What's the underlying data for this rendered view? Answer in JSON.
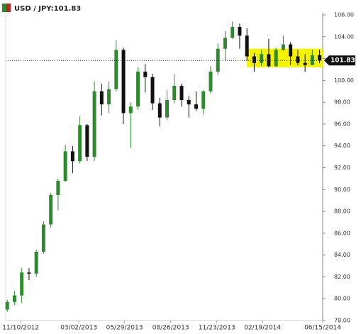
{
  "chart_data": {
    "type": "candlestick",
    "title": "USD / JPY:101.83",
    "x": [
      "2012-10-15",
      "2012-10-29",
      "2012-11-12",
      "2012-11-26",
      "2012-12-10",
      "2012-12-24",
      "2013-01-07",
      "2013-01-21",
      "2013-02-04",
      "2013-02-18",
      "2013-03-04",
      "2013-03-18",
      "2013-04-01",
      "2013-04-15",
      "2013-04-29",
      "2013-05-13",
      "2013-05-27",
      "2013-06-10",
      "2013-06-24",
      "2013-07-08",
      "2013-07-22",
      "2013-08-05",
      "2013-08-19",
      "2013-09-02",
      "2013-09-16",
      "2013-09-30",
      "2013-10-14",
      "2013-10-28",
      "2013-11-11",
      "2013-11-25",
      "2013-12-09",
      "2013-12-23",
      "2014-01-06",
      "2014-01-20",
      "2014-02-03",
      "2014-02-17",
      "2014-03-03",
      "2014-03-17",
      "2014-03-31",
      "2014-04-14",
      "2014-04-28",
      "2014-05-12",
      "2014-05-26",
      "2014-06-09"
    ],
    "open": [
      79.0,
      79.7,
      80.3,
      82.4,
      82.3,
      84.3,
      86.8,
      89.5,
      90.8,
      93.5,
      92.6,
      95.9,
      93.0,
      99.0,
      97.8,
      99.2,
      102.8,
      97.0,
      97.6,
      100.8,
      100.3,
      97.9,
      96.6,
      98.2,
      99.5,
      98.2,
      97.8,
      97.4,
      99.0,
      100.8,
      102.9,
      103.9,
      104.9,
      104.1,
      102.2,
      101.6,
      102.4,
      101.3,
      102.8,
      103.3,
      102.2,
      101.6,
      101.4,
      102.3
    ],
    "high": [
      79.9,
      80.7,
      82.8,
      82.8,
      84.5,
      87.1,
      89.7,
      91.0,
      94.1,
      94.0,
      96.7,
      96.0,
      99.9,
      99.7,
      99.9,
      103.7,
      103.0,
      98.0,
      101.2,
      101.5,
      100.6,
      98.4,
      99.1,
      100.6,
      99.7,
      98.6,
      99.0,
      99.1,
      101.3,
      103.4,
      104.5,
      105.4,
      105.2,
      104.8,
      102.5,
      102.8,
      103.8,
      103.0,
      104.1,
      103.5,
      102.8,
      102.4,
      102.8,
      102.8
    ],
    "low": [
      78.8,
      79.4,
      79.6,
      81.7,
      82.0,
      84.1,
      86.5,
      88.1,
      90.7,
      91.5,
      92.4,
      92.6,
      92.6,
      96.8,
      97.0,
      99.0,
      96.0,
      93.8,
      97.3,
      98.9,
      97.3,
      95.8,
      96.4,
      97.9,
      97.6,
      96.6,
      97.2,
      96.9,
      98.8,
      100.5,
      101.8,
      103.8,
      102.9,
      101.8,
      100.8,
      101.3,
      101.2,
      101.2,
      102.7,
      101.4,
      101.4,
      100.8,
      101.4,
      101.6
    ],
    "close": [
      79.7,
      80.3,
      82.4,
      82.3,
      84.3,
      86.8,
      89.5,
      90.8,
      93.5,
      92.6,
      95.9,
      93.0,
      99.0,
      97.8,
      99.2,
      102.8,
      97.0,
      97.6,
      100.8,
      100.3,
      97.9,
      96.6,
      98.2,
      99.5,
      98.2,
      97.8,
      97.4,
      99.0,
      100.8,
      102.9,
      103.9,
      104.9,
      104.1,
      102.2,
      101.6,
      102.4,
      101.3,
      102.8,
      103.3,
      102.2,
      101.6,
      101.4,
      102.3,
      101.83
    ],
    "up_color": "#2f8a2f",
    "down_color": "#111111",
    "last_price": 101.83,
    "highlight": {
      "x": [
        "2014-01-20",
        "2014-06-15"
      ],
      "y": [
        101.2,
        102.9
      ],
      "color": "#f5f200"
    },
    "xlim": [
      "2012-10-12",
      "2014-06-15"
    ],
    "xticks": [
      {
        "value": "2012-11-10",
        "label": "11/10/2012"
      },
      {
        "value": "2013-03-02",
        "label": "03/02/2013"
      },
      {
        "value": "2013-05-29",
        "label": "05/29/2013"
      },
      {
        "value": "2013-08-26",
        "label": "08/26/2013"
      },
      {
        "value": "2013-11-23",
        "label": "11/23/2013"
      },
      {
        "value": "2014-02-19",
        "label": "02/19/2014"
      },
      {
        "value": "2014-06-15",
        "label": "06/15/2014"
      }
    ],
    "ylim": [
      78,
      106
    ],
    "yticks": [
      {
        "value": 78,
        "label": "78.00"
      },
      {
        "value": 80,
        "label": "80.00"
      },
      {
        "value": 82,
        "label": "82.00"
      },
      {
        "value": 84,
        "label": "84.00"
      },
      {
        "value": 86,
        "label": "86.00"
      },
      {
        "value": 88,
        "label": "88.00"
      },
      {
        "value": 90,
        "label": "90.00"
      },
      {
        "value": 92,
        "label": "92.00"
      },
      {
        "value": 94,
        "label": "94.00"
      },
      {
        "value": 96,
        "label": "96.00"
      },
      {
        "value": 98,
        "label": "98.00"
      },
      {
        "value": 100,
        "label": "100.00"
      },
      {
        "value": 102,
        "label": "102.00"
      },
      {
        "value": 104,
        "label": "104.00"
      },
      {
        "value": 106,
        "label": "106.00"
      }
    ],
    "grid": false
  }
}
